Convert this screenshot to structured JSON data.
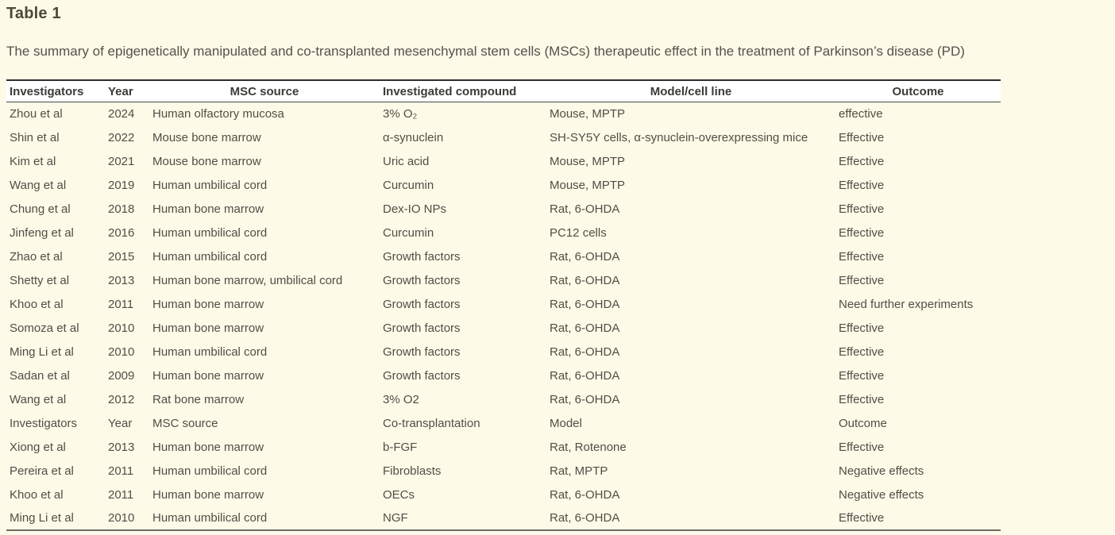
{
  "page": {
    "title": "Table 1",
    "caption": "The summary of epigenetically manipulated and co-transplanted mesenchymal stem cells (MSCs) therapeutic effect in the treatment of Parkinson’s disease (PD)"
  },
  "colors": {
    "page_background": "#fdfae8",
    "header_row_background": "#ffffff",
    "title_text": "#4c4936",
    "body_text": "#514e45",
    "header_text": "#3c3b38",
    "top_border": "#2e2e2c",
    "bottom_border": "#6e6c64"
  },
  "table": {
    "columns": [
      "Investigators",
      "Year",
      "MSC source",
      "Investigated compound",
      "Model/cell line",
      "Outcome"
    ],
    "rows": [
      [
        "Zhou et al",
        "2024",
        "Human olfactory mucosa",
        "3% O₂",
        "Mouse, MPTP",
        "effective"
      ],
      [
        "Shin et al",
        "2022",
        "Mouse bone marrow",
        "α-synuclein",
        "SH-SY5Y cells, α-synuclein-overexpressing mice",
        "Effective"
      ],
      [
        "Kim et al",
        "2021",
        "Mouse bone marrow",
        "Uric acid",
        "Mouse, MPTP",
        "Effective"
      ],
      [
        "Wang et al",
        "2019",
        "Human umbilical cord",
        "Curcumin",
        "Mouse, MPTP",
        "Effective"
      ],
      [
        "Chung et al",
        "2018",
        "Human bone marrow",
        "Dex-IO NPs",
        "Rat, 6-OHDA",
        "Effective"
      ],
      [
        "Jinfeng et al",
        "2016",
        "Human umbilical cord",
        "Curcumin",
        "PC12 cells",
        "Effective"
      ],
      [
        "Zhao et al",
        "2015",
        "Human umbilical cord",
        "Growth factors",
        "Rat, 6-OHDA",
        "Effective"
      ],
      [
        "Shetty et al",
        "2013",
        "Human bone marrow, umbilical cord",
        "Growth factors",
        "Rat, 6-OHDA",
        "Effective"
      ],
      [
        "Khoo et al",
        "2011",
        "Human bone marrow",
        "Growth factors",
        "Rat, 6-OHDA",
        "Need further experiments"
      ],
      [
        "Somoza et al",
        "2010",
        "Human bone marrow",
        "Growth factors",
        "Rat, 6-OHDA",
        "Effective"
      ],
      [
        "Ming Li et al",
        "2010",
        "Human umbilical cord",
        "Growth factors",
        "Rat, 6-OHDA",
        "Effective"
      ],
      [
        "Sadan et al",
        "2009",
        "Human bone marrow",
        "Growth factors",
        "Rat, 6-OHDA",
        "Effective"
      ],
      [
        "Wang et al",
        "2012",
        "Rat bone marrow",
        "3% O2",
        "Rat, 6-OHDA",
        "Effective"
      ],
      [
        "Investigators",
        "Year",
        "MSC source",
        "Co-transplantation",
        "Model",
        "Outcome"
      ],
      [
        "Xiong et al",
        "2013",
        "Human bone marrow",
        "b-FGF",
        "Rat, Rotenone",
        "Effective"
      ],
      [
        "Pereira et al",
        "2011",
        "Human umbilical cord",
        "Fibroblasts",
        "Rat, MPTP",
        "Negative effects"
      ],
      [
        "Khoo et al",
        "2011",
        "Human bone marrow",
        "OECs",
        "Rat, 6-OHDA",
        "Negative effects"
      ],
      [
        "Ming Li et al",
        "2010",
        "Human umbilical cord",
        "NGF",
        "Rat, 6-OHDA",
        "Effective"
      ]
    ]
  }
}
